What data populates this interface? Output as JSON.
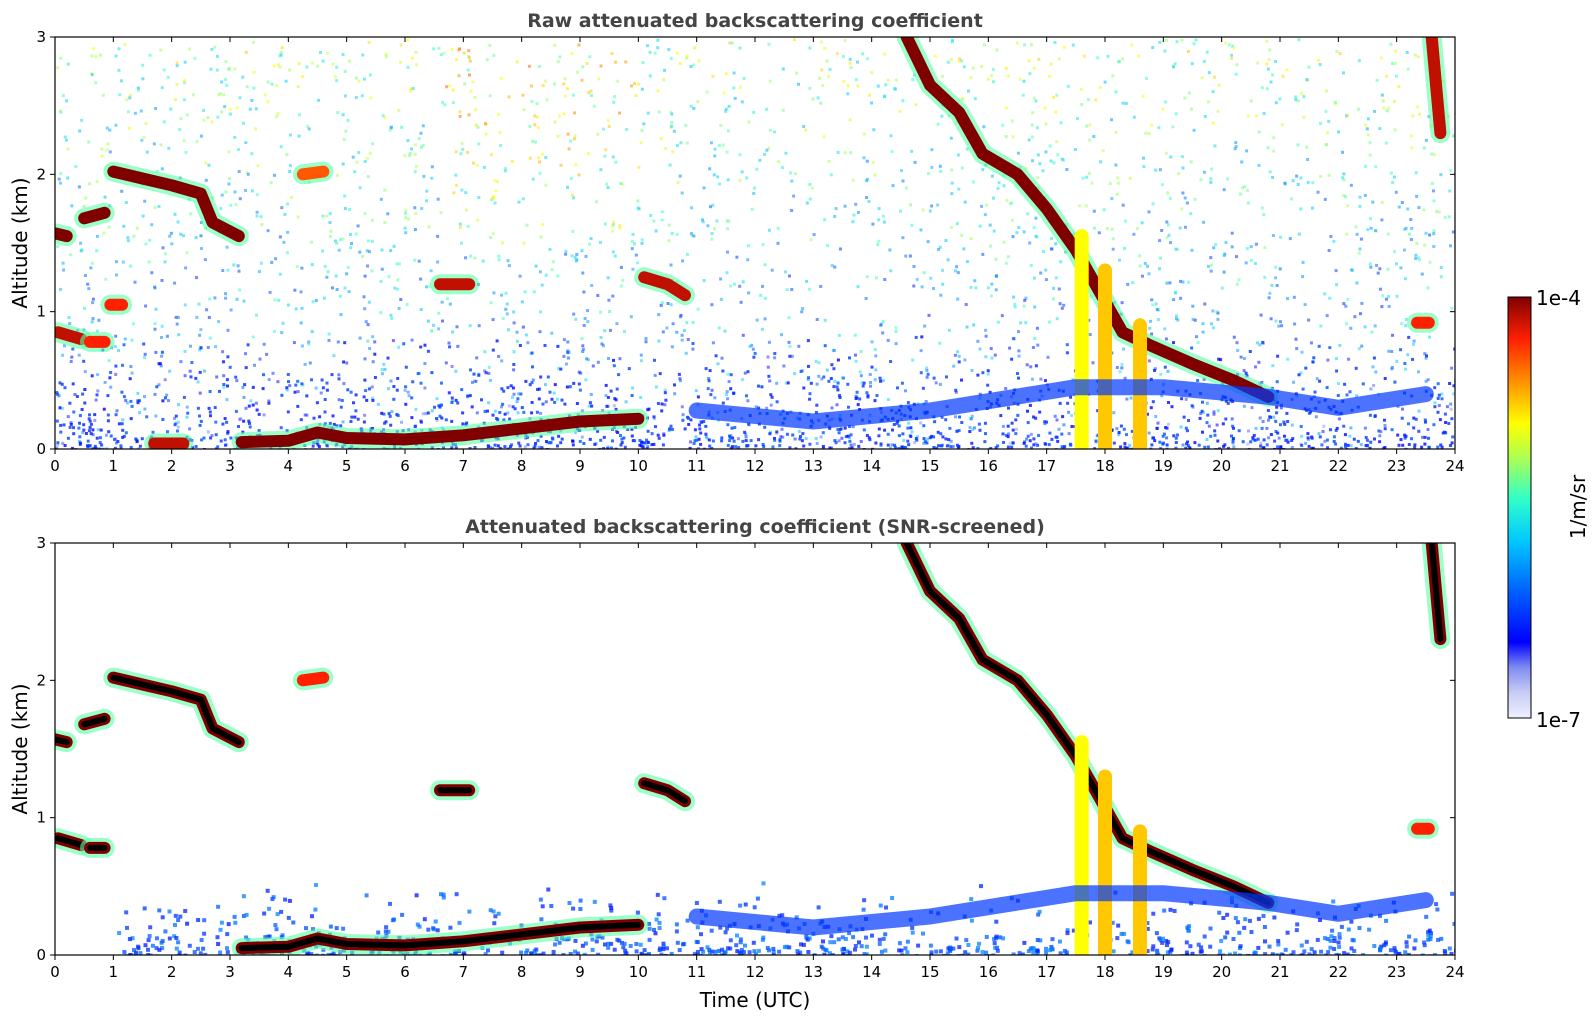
{
  "chart_data": [
    {
      "type": "heatmap",
      "title": "Raw attenuated backscattering coefficient",
      "xlabel": "",
      "ylabel": "Altitude (km)",
      "xlim": [
        0,
        24
      ],
      "ylim": [
        0,
        3
      ],
      "xticks": [
        "0",
        "1",
        "2",
        "3",
        "4",
        "5",
        "6",
        "7",
        "8",
        "9",
        "10",
        "11",
        "12",
        "13",
        "14",
        "15",
        "16",
        "17",
        "18",
        "19",
        "20",
        "21",
        "22",
        "23",
        "24"
      ],
      "yticks": [
        "0",
        "1",
        "2",
        "3"
      ],
      "features": [
        {
          "label": "cloud",
          "points": [
            [
              1.0,
              2.02
            ],
            [
              1.5,
              1.97
            ],
            [
              2.0,
              1.92
            ],
            [
              2.5,
              1.86
            ],
            [
              2.7,
              1.65
            ],
            [
              3.15,
              1.55
            ]
          ],
          "level": 1.0
        },
        {
          "label": "cloud",
          "points": [
            [
              0.0,
              1.57
            ],
            [
              0.2,
              1.55
            ]
          ],
          "level": 1.0
        },
        {
          "label": "cloud",
          "points": [
            [
              0.5,
              1.68
            ],
            [
              0.85,
              1.72
            ]
          ],
          "level": 1.0
        },
        {
          "label": "cloud",
          "points": [
            [
              0.05,
              0.85
            ],
            [
              0.45,
              0.8
            ]
          ],
          "level": 0.95
        },
        {
          "label": "cloud",
          "points": [
            [
              0.6,
              0.78
            ],
            [
              0.85,
              0.78
            ]
          ],
          "level": 0.9
        },
        {
          "label": "cloud",
          "points": [
            [
              0.95,
              1.05
            ],
            [
              1.15,
              1.05
            ]
          ],
          "level": 0.9
        },
        {
          "label": "cloud",
          "points": [
            [
              4.25,
              2.0
            ],
            [
              4.6,
              2.02
            ]
          ],
          "level": 0.85
        },
        {
          "label": "cloud",
          "points": [
            [
              6.6,
              1.2
            ],
            [
              7.1,
              1.2
            ]
          ],
          "level": 0.95
        },
        {
          "label": "cloud",
          "points": [
            [
              10.1,
              1.25
            ],
            [
              10.5,
              1.2
            ],
            [
              10.8,
              1.12
            ]
          ],
          "level": 0.95
        },
        {
          "label": "cloud",
          "points": [
            [
              14.6,
              3.0
            ],
            [
              15.0,
              2.65
            ],
            [
              15.5,
              2.45
            ],
            [
              15.9,
              2.15
            ],
            [
              16.5,
              2.0
            ],
            [
              17.0,
              1.75
            ],
            [
              17.5,
              1.45
            ],
            [
              17.9,
              1.15
            ],
            [
              18.3,
              0.85
            ],
            [
              18.8,
              0.75
            ],
            [
              19.5,
              0.62
            ],
            [
              20.2,
              0.5
            ],
            [
              20.8,
              0.38
            ]
          ],
          "level": 1.0
        },
        {
          "label": "cloud",
          "points": [
            [
              23.6,
              3.0
            ],
            [
              23.75,
              2.3
            ]
          ],
          "level": 0.95
        },
        {
          "label": "cloud",
          "points": [
            [
              23.35,
              0.92
            ],
            [
              23.55,
              0.92
            ]
          ],
          "level": 0.9
        },
        {
          "label": "boundary layer",
          "points": [
            [
              1.7,
              0.04
            ],
            [
              2.2,
              0.04
            ]
          ],
          "level": 0.95
        },
        {
          "label": "boundary layer",
          "points": [
            [
              3.2,
              0.05
            ],
            [
              4.0,
              0.06
            ],
            [
              4.5,
              0.12
            ],
            [
              5.0,
              0.08
            ],
            [
              6.0,
              0.07
            ],
            [
              7.0,
              0.1
            ],
            [
              8.0,
              0.15
            ],
            [
              9.0,
              0.2
            ],
            [
              10.0,
              0.22
            ]
          ],
          "level": 1.0
        },
        {
          "label": "precipitation",
          "points": [
            [
              17.6,
              1.55
            ],
            [
              17.6,
              0.0
            ]
          ],
          "level": 0.7
        },
        {
          "label": "precipitation",
          "points": [
            [
              18.0,
              1.3
            ],
            [
              18.0,
              0.0
            ]
          ],
          "level": 0.75
        },
        {
          "label": "precipitation",
          "points": [
            [
              18.6,
              0.9
            ],
            [
              18.6,
              0.0
            ]
          ],
          "level": 0.75
        },
        {
          "label": "aerosol",
          "points": [
            [
              11.0,
              0.28
            ],
            [
              13.0,
              0.2
            ],
            [
              15.0,
              0.28
            ],
            [
              17.5,
              0.45
            ],
            [
              19.0,
              0.45
            ],
            [
              20.8,
              0.38
            ],
            [
              22.0,
              0.3
            ],
            [
              23.5,
              0.4
            ]
          ],
          "level": 0.25
        }
      ]
    },
    {
      "type": "heatmap",
      "title": "Attenuated backscattering coefficient (SNR-screened)",
      "xlabel": "Time (UTC)",
      "ylabel": "Altitude (km)",
      "xlim": [
        0,
        24
      ],
      "ylim": [
        0,
        3
      ],
      "xticks": [
        "0",
        "1",
        "2",
        "3",
        "4",
        "5",
        "6",
        "7",
        "8",
        "9",
        "10",
        "11",
        "12",
        "13",
        "14",
        "15",
        "16",
        "17",
        "18",
        "19",
        "20",
        "21",
        "22",
        "23",
        "24"
      ],
      "yticks": [
        "0",
        "1",
        "2",
        "3"
      ],
      "features": [
        {
          "label": "cloud",
          "points": [
            [
              1.0,
              2.02
            ],
            [
              1.5,
              1.97
            ],
            [
              2.0,
              1.92
            ],
            [
              2.5,
              1.86
            ],
            [
              2.7,
              1.65
            ],
            [
              3.15,
              1.55
            ]
          ],
          "level": 1.0
        },
        {
          "label": "cloud",
          "points": [
            [
              0.0,
              1.57
            ],
            [
              0.2,
              1.55
            ]
          ],
          "level": 1.0
        },
        {
          "label": "cloud",
          "points": [
            [
              0.5,
              1.68
            ],
            [
              0.85,
              1.72
            ]
          ],
          "level": 1.0
        },
        {
          "label": "cloud",
          "points": [
            [
              0.05,
              0.85
            ],
            [
              0.45,
              0.8
            ]
          ],
          "level": 1.0
        },
        {
          "label": "cloud",
          "points": [
            [
              0.6,
              0.78
            ],
            [
              0.85,
              0.78
            ]
          ],
          "level": 1.0
        },
        {
          "label": "cloud",
          "points": [
            [
              4.25,
              2.0
            ],
            [
              4.6,
              2.02
            ]
          ],
          "level": 0.9
        },
        {
          "label": "cloud",
          "points": [
            [
              6.6,
              1.2
            ],
            [
              7.1,
              1.2
            ]
          ],
          "level": 1.0
        },
        {
          "label": "cloud",
          "points": [
            [
              10.1,
              1.25
            ],
            [
              10.5,
              1.2
            ],
            [
              10.8,
              1.12
            ]
          ],
          "level": 1.0
        },
        {
          "label": "cloud",
          "points": [
            [
              14.6,
              3.0
            ],
            [
              15.0,
              2.65
            ],
            [
              15.5,
              2.45
            ],
            [
              15.9,
              2.15
            ],
            [
              16.5,
              2.0
            ],
            [
              17.0,
              1.75
            ],
            [
              17.5,
              1.45
            ],
            [
              17.9,
              1.15
            ],
            [
              18.3,
              0.85
            ],
            [
              18.8,
              0.75
            ],
            [
              19.5,
              0.62
            ],
            [
              20.2,
              0.5
            ],
            [
              20.8,
              0.38
            ]
          ],
          "level": 1.0
        },
        {
          "label": "cloud",
          "points": [
            [
              23.6,
              3.0
            ],
            [
              23.75,
              2.3
            ]
          ],
          "level": 1.0
        },
        {
          "label": "cloud",
          "points": [
            [
              23.35,
              0.92
            ],
            [
              23.55,
              0.92
            ]
          ],
          "level": 0.9
        },
        {
          "label": "boundary layer",
          "points": [
            [
              3.2,
              0.05
            ],
            [
              4.0,
              0.06
            ],
            [
              4.5,
              0.12
            ],
            [
              5.0,
              0.08
            ],
            [
              6.0,
              0.07
            ],
            [
              7.0,
              0.1
            ],
            [
              8.0,
              0.15
            ],
            [
              9.0,
              0.2
            ],
            [
              10.0,
              0.22
            ]
          ],
          "level": 1.0
        },
        {
          "label": "precipitation",
          "points": [
            [
              17.6,
              1.55
            ],
            [
              17.6,
              0.0
            ]
          ],
          "level": 0.7
        },
        {
          "label": "precipitation",
          "points": [
            [
              18.0,
              1.3
            ],
            [
              18.0,
              0.0
            ]
          ],
          "level": 0.75
        },
        {
          "label": "precipitation",
          "points": [
            [
              18.6,
              0.9
            ],
            [
              18.6,
              0.0
            ]
          ],
          "level": 0.75
        },
        {
          "label": "aerosol",
          "points": [
            [
              11.0,
              0.28
            ],
            [
              13.0,
              0.2
            ],
            [
              15.0,
              0.28
            ],
            [
              17.5,
              0.45
            ],
            [
              19.0,
              0.45
            ],
            [
              20.8,
              0.38
            ],
            [
              22.0,
              0.3
            ],
            [
              23.5,
              0.4
            ]
          ],
          "level": 0.25
        }
      ]
    }
  ],
  "colorbar": {
    "label": "1/m/sr",
    "min_label": "1e-7",
    "max_label": "1e-4",
    "min": 1e-07,
    "max": 0.0001,
    "scale": "log",
    "colormap": "jet",
    "colors": [
      "#eef0ff",
      "#c8ccf5",
      "#7f8cf0",
      "#0000ff",
      "#0040ff",
      "#0090ff",
      "#00d0ff",
      "#20ffd0",
      "#80ff80",
      "#d0ff30",
      "#ffff00",
      "#ffc000",
      "#ff7000",
      "#ff2000",
      "#c00000",
      "#800000"
    ]
  },
  "colors": {
    "title": "#444444",
    "background": "#ffffff",
    "axes": "#000000",
    "saturated": "#000000"
  }
}
